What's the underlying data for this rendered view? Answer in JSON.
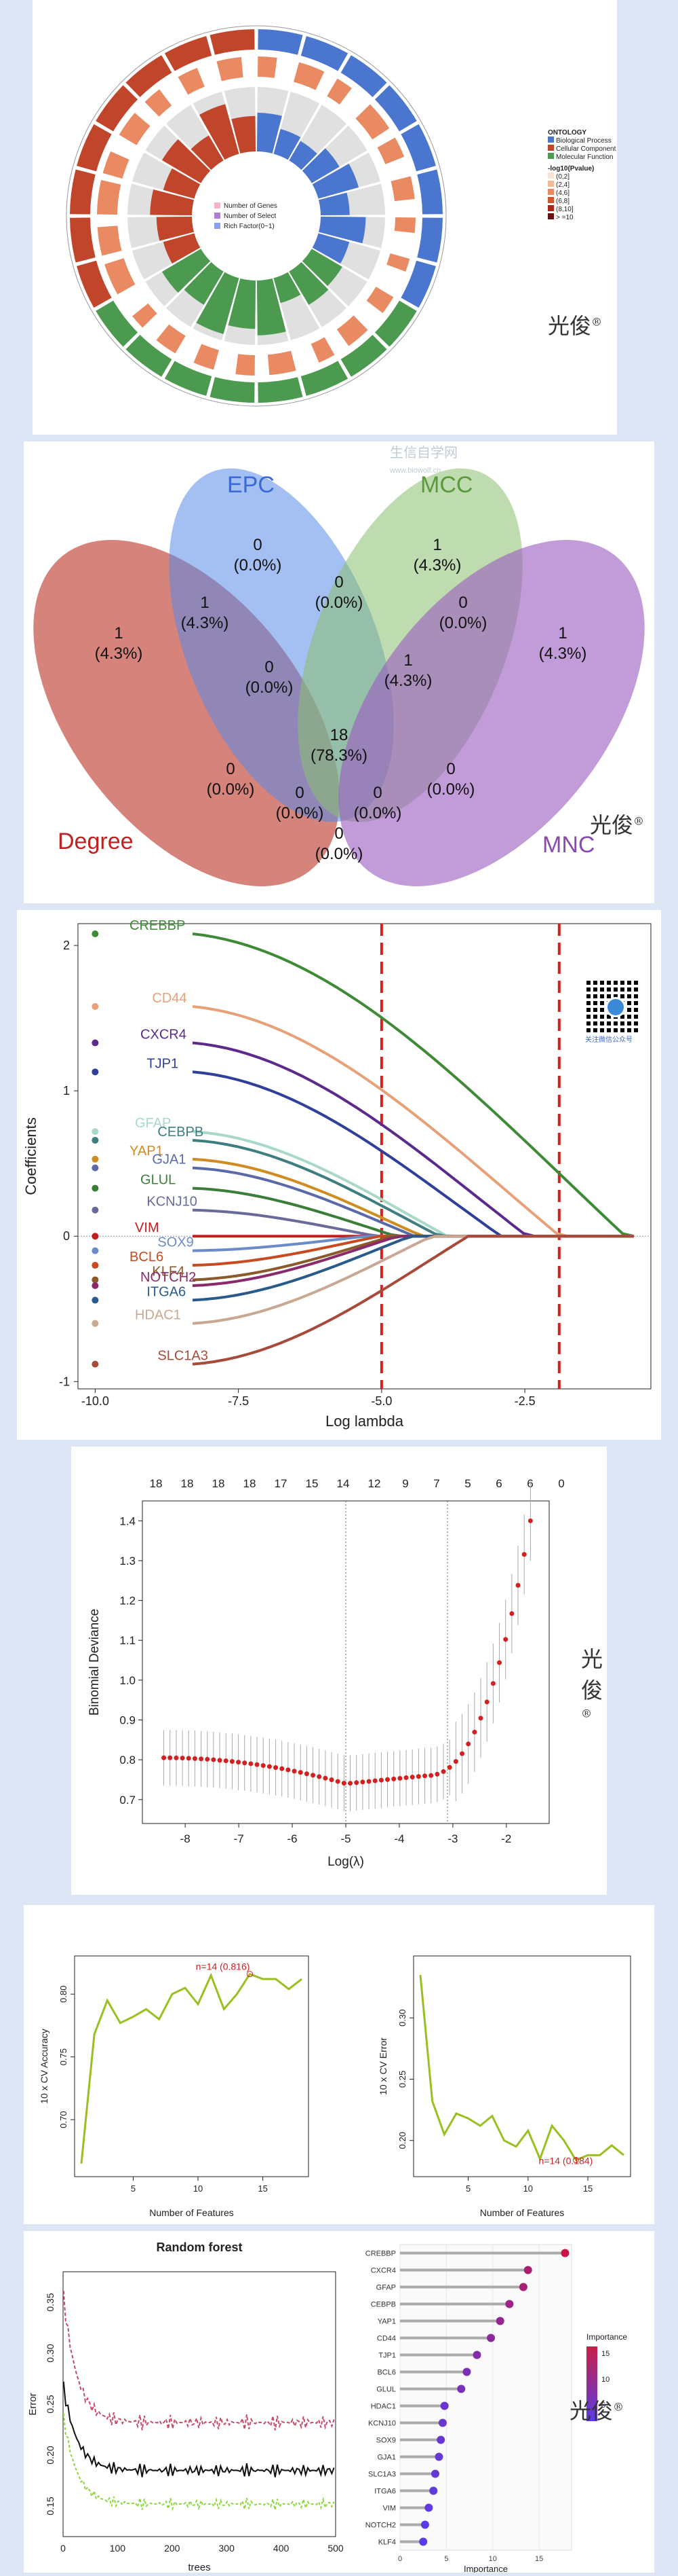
{
  "watermark": {
    "brand": "光俊",
    "reg": "®",
    "site_cn": "生信自学网",
    "site_url": "www.biowolf.cn",
    "qr_caption": "关注微信公众号"
  },
  "go_circle": {
    "legend_title": "ONTOLOGY",
    "legend_items": [
      "Biological Process",
      "Cellular Component",
      "Molecular Function"
    ],
    "pvalue_title": "-log10(Pvalue)",
    "pvalue_items": [
      "(0,2]",
      "(2,4]",
      "(4,6]",
      "(6,8]",
      "(8,10]",
      "> =10"
    ],
    "center_legend": [
      "Number of Genes",
      "Number of Select",
      "Rich Factor(0~1)"
    ],
    "colors": {
      "bp": "#4c9a50",
      "cc": "#c0452b",
      "mf": "#4a76d0"
    }
  },
  "venn": {
    "labels": {
      "epc": "EPC",
      "mcc": "MCC",
      "degree": "Degree",
      "mnc": "MNC"
    },
    "regions": {
      "epc_only": [
        "0",
        "(0.0%)"
      ],
      "mcc_only": [
        "1",
        "(4.3%)"
      ],
      "degree_only": [
        "1",
        "(4.3%)"
      ],
      "mnc_only": [
        "1",
        "(4.3%)"
      ],
      "epc_mcc": [
        "0",
        "(0.0%)"
      ],
      "degree_epc": [
        "1",
        "(4.3%)"
      ],
      "mcc_mnc": [
        "0",
        "(0.0%)"
      ],
      "deg_epc_mcc": [
        "0",
        "(0.0%)"
      ],
      "epc_mcc_mnc": [
        "1",
        "(4.3%)"
      ],
      "all": [
        "18",
        "(78.3%)"
      ],
      "degree_mcc": [
        "0",
        "(0.0%)"
      ],
      "epc_mnc": [
        "0",
        "(0.0%)"
      ],
      "deg_epc_mnc": [
        "0",
        "(0.0%)"
      ],
      "deg_mcc_mnc": [
        "0",
        "(0.0%)"
      ],
      "degree_mnc": [
        "0",
        "(0.0%)"
      ]
    }
  },
  "chart_data": [
    {
      "type": "line",
      "id": "lasso_path",
      "xlabel": "Log lambda",
      "ylabel": "Coefficients",
      "xlim": [
        -10.3,
        -0.3
      ],
      "ylim": [
        -1.05,
        2.15
      ],
      "x_ticks": [
        "-10.0",
        "-7.5",
        "-5.0",
        "-2.5"
      ],
      "y_ticks": [
        "-1",
        "0",
        "1",
        "2"
      ],
      "vlines": [
        -5.0,
        -1.9
      ],
      "series": [
        {
          "name": "CREBBP",
          "color": "#3e8a36",
          "start": 2.08
        },
        {
          "name": "CD44",
          "color": "#e8a078",
          "start": 1.58
        },
        {
          "name": "CXCR4",
          "color": "#5c2a8a",
          "start": 1.33
        },
        {
          "name": "TJP1",
          "color": "#2f3f9a",
          "start": 1.13
        },
        {
          "name": "GFAP",
          "color": "#a8d8c8",
          "start": 0.72
        },
        {
          "name": "CEBPB",
          "color": "#3e7e80",
          "start": 0.66
        },
        {
          "name": "YAP1",
          "color": "#d08c20",
          "start": 0.53
        },
        {
          "name": "GJA1",
          "color": "#5a6aa8",
          "start": 0.47
        },
        {
          "name": "GLUL",
          "color": "#3a7e3a",
          "start": 0.33
        },
        {
          "name": "KCNJ10",
          "color": "#6a6a9a",
          "start": 0.18
        },
        {
          "name": "VIM",
          "color": "#c02020",
          "start": 0.0
        },
        {
          "name": "SOX9",
          "color": "#6a8ac8",
          "start": -0.1
        },
        {
          "name": "BCL6",
          "color": "#c84a20",
          "start": -0.2
        },
        {
          "name": "KLF4",
          "color": "#8a5a2a",
          "start": -0.3
        },
        {
          "name": "NOTCH2",
          "color": "#8a2a6a",
          "start": -0.34
        },
        {
          "name": "ITGA6",
          "color": "#2a5a8a",
          "start": -0.44
        },
        {
          "name": "HDAC1",
          "color": "#c8a890",
          "start": -0.6
        },
        {
          "name": "SLC1A3",
          "color": "#a84a3a",
          "start": -0.88
        }
      ]
    },
    {
      "type": "scatter",
      "id": "cv_deviance",
      "xlabel": "Log(λ)",
      "ylabel": "Binomial Deviance",
      "xlim": [
        -8.8,
        -1.2
      ],
      "ylim": [
        0.64,
        1.45
      ],
      "x_ticks": [
        "-8",
        "-7",
        "-6",
        "-5",
        "-4",
        "-3",
        "-2"
      ],
      "y_ticks": [
        "0.7",
        "0.8",
        "0.9",
        "1.0",
        "1.1",
        "1.2",
        "1.3",
        "1.4"
      ],
      "top_labels": [
        "18",
        "18",
        "18",
        "18",
        "17",
        "15",
        "14",
        "12",
        "9",
        "7",
        "5",
        "6",
        "6",
        "0"
      ],
      "vlines": [
        -5.0,
        -3.1
      ]
    },
    {
      "type": "line",
      "id": "svm_accuracy",
      "xlabel": "Number of Features",
      "ylabel": "10 x CV Accuracy",
      "annotation": "n=14 (0.816)",
      "x_ticks": [
        "5",
        "10",
        "15"
      ],
      "y_ticks": [
        "0.70",
        "0.75",
        "0.80"
      ],
      "x": [
        1,
        2,
        3,
        4,
        5,
        6,
        7,
        8,
        9,
        10,
        11,
        12,
        13,
        14,
        15,
        16,
        17,
        18
      ],
      "values": [
        0.665,
        0.768,
        0.795,
        0.777,
        0.782,
        0.788,
        0.78,
        0.8,
        0.805,
        0.792,
        0.815,
        0.788,
        0.8,
        0.816,
        0.812,
        0.812,
        0.804,
        0.812
      ]
    },
    {
      "type": "line",
      "id": "svm_error",
      "xlabel": "Number of Features",
      "ylabel": "10 x CV Error",
      "annotation": "n=14 (0.184)",
      "x_ticks": [
        "5",
        "10",
        "15"
      ],
      "y_ticks": [
        "0.20",
        "0.25",
        "0.30"
      ],
      "x": [
        1,
        2,
        3,
        4,
        5,
        6,
        7,
        8,
        9,
        10,
        11,
        12,
        13,
        14,
        15,
        16,
        17,
        18
      ],
      "values": [
        0.335,
        0.232,
        0.205,
        0.222,
        0.218,
        0.212,
        0.22,
        0.2,
        0.195,
        0.208,
        0.185,
        0.212,
        0.2,
        0.184,
        0.188,
        0.188,
        0.196,
        0.188
      ]
    },
    {
      "type": "line",
      "id": "rf_error",
      "title": "Random forest",
      "xlabel": "trees",
      "ylabel": "Error",
      "x_ticks": [
        "0",
        "100",
        "200",
        "300",
        "400",
        "500"
      ],
      "y_ticks": [
        "0.15",
        "0.20",
        "0.25",
        "0.30",
        "0.35"
      ]
    },
    {
      "type": "scatter",
      "id": "rf_importance",
      "xlabel": "Importance",
      "legend_title": "Importance",
      "legend_ticks": [
        "15",
        "10",
        "5"
      ],
      "x_ticks": [
        "0",
        "5",
        "10",
        "15"
      ],
      "categories": [
        "CREBBP",
        "CXCR4",
        "GFAP",
        "CEBPB",
        "YAP1",
        "CD44",
        "TJP1",
        "BCL6",
        "GLUL",
        "HDAC1",
        "KCNJ10",
        "SOX9",
        "GJA1",
        "SLC1A3",
        "ITGA6",
        "VIM",
        "NOTCH2",
        "KLF4"
      ],
      "values": [
        17.8,
        13.8,
        13.3,
        11.8,
        10.8,
        9.8,
        8.3,
        7.2,
        6.6,
        4.8,
        4.6,
        4.4,
        4.2,
        3.8,
        3.6,
        3.1,
        2.7,
        2.5
      ]
    }
  ]
}
